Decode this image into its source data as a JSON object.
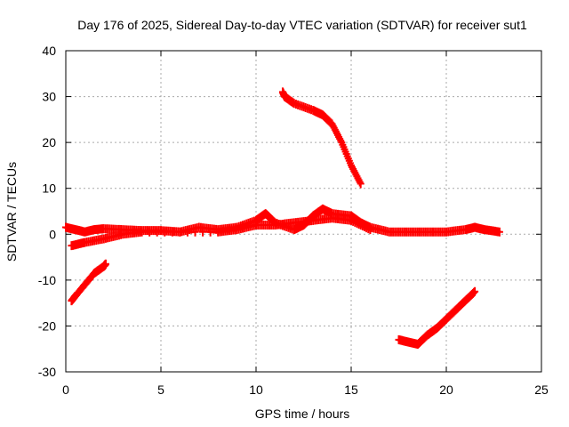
{
  "chart_data": {
    "type": "scatter",
    "title": "Day 176 of 2025, Sidereal Day-to-day VTEC variation (SDTVAR) for receiver sut1",
    "xlabel": "GPS time / hours",
    "ylabel": "SDTVAR / TECUs",
    "xlim": [
      0,
      25
    ],
    "ylim": [
      -30,
      40
    ],
    "xticks": [
      0,
      5,
      10,
      15,
      20,
      25
    ],
    "yticks": [
      -30,
      -20,
      -10,
      0,
      10,
      20,
      30,
      40
    ],
    "grid": true,
    "marker_color": "#ff0000",
    "series": [
      {
        "name": "main-band",
        "points": [
          [
            0.0,
            1.5
          ],
          [
            0.5,
            1.0
          ],
          [
            1.0,
            0.5
          ],
          [
            1.5,
            1.0
          ],
          [
            2.0,
            1.2
          ],
          [
            3.0,
            1.0
          ],
          [
            4.0,
            0.8
          ],
          [
            5.0,
            0.8
          ],
          [
            6.0,
            0.5
          ],
          [
            7.0,
            1.5
          ],
          [
            8.0,
            1.0
          ],
          [
            9.0,
            1.5
          ],
          [
            10.0,
            3.0
          ],
          [
            10.5,
            4.5
          ],
          [
            11.0,
            2.5
          ],
          [
            12.0,
            1.0
          ],
          [
            12.5,
            2.0
          ],
          [
            13.0,
            4.0
          ],
          [
            13.5,
            5.5
          ],
          [
            14.0,
            4.5
          ],
          [
            15.0,
            4.0
          ],
          [
            15.5,
            2.5
          ],
          [
            16.0,
            1.5
          ],
          [
            17.0,
            0.5
          ],
          [
            18.0,
            0.5
          ],
          [
            19.0,
            0.5
          ],
          [
            20.0,
            0.5
          ],
          [
            21.0,
            1.0
          ],
          [
            21.5,
            1.5
          ],
          [
            22.0,
            1.0
          ],
          [
            22.8,
            0.5
          ]
        ]
      },
      {
        "name": "lower-secondary-band",
        "points": [
          [
            0.3,
            -2.5
          ],
          [
            1.0,
            -1.8
          ],
          [
            2.0,
            -1.0
          ],
          [
            3.0,
            0.0
          ],
          [
            4.0,
            0.5
          ],
          [
            8.0,
            0.5
          ],
          [
            9.0,
            1.0
          ],
          [
            10.0,
            2.0
          ],
          [
            11.0,
            2.0
          ],
          [
            12.0,
            2.5
          ],
          [
            13.0,
            3.0
          ],
          [
            14.0,
            3.5
          ],
          [
            15.0,
            3.0
          ],
          [
            16.0,
            1.0
          ]
        ]
      },
      {
        "name": "descending-arc",
        "points": [
          [
            11.4,
            31.0
          ],
          [
            11.5,
            30.0
          ],
          [
            12.0,
            28.5
          ],
          [
            13.0,
            27.0
          ],
          [
            13.5,
            26.0
          ],
          [
            14.0,
            24.0
          ],
          [
            14.5,
            20.0
          ],
          [
            15.0,
            15.0
          ],
          [
            15.5,
            11.0
          ]
        ]
      },
      {
        "name": "early-negative-arc",
        "points": [
          [
            0.3,
            -14.5
          ],
          [
            0.5,
            -13.5
          ],
          [
            1.0,
            -11.0
          ],
          [
            1.5,
            -8.5
          ],
          [
            2.0,
            -7.0
          ],
          [
            2.1,
            -6.5
          ]
        ]
      },
      {
        "name": "late-negative-arc",
        "points": [
          [
            17.5,
            -23.0
          ],
          [
            18.0,
            -23.5
          ],
          [
            18.5,
            -24.0
          ],
          [
            19.0,
            -22.0
          ],
          [
            19.5,
            -20.5
          ],
          [
            20.0,
            -18.5
          ],
          [
            20.5,
            -16.5
          ],
          [
            21.0,
            -14.5
          ],
          [
            21.5,
            -12.5
          ]
        ]
      }
    ]
  }
}
